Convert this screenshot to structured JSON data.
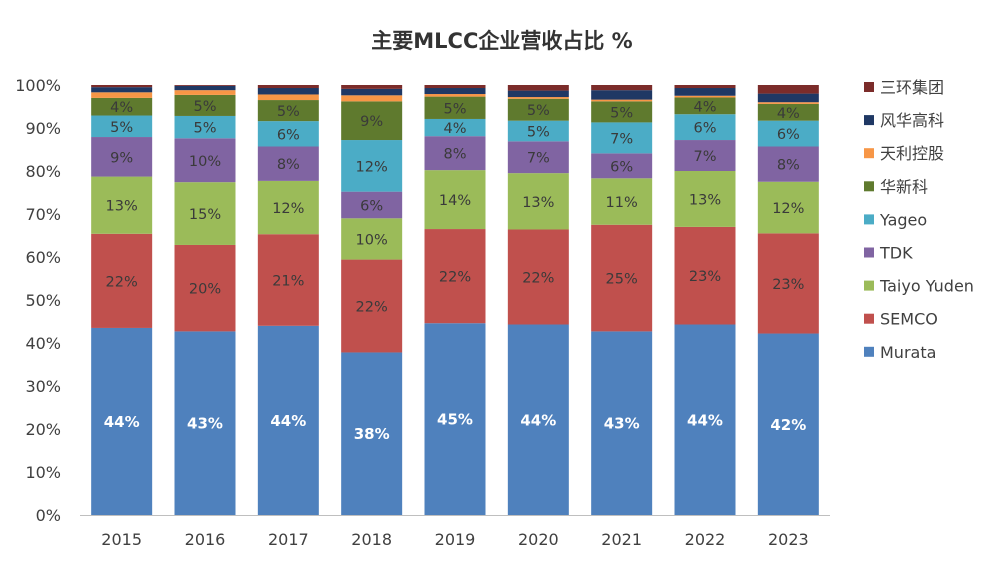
{
  "chart_data": {
    "type": "bar",
    "stacked": true,
    "percent": true,
    "title": "主要MLCC企业营收占比 %",
    "xlabel": "",
    "ylabel": "",
    "ylim": [
      0,
      100
    ],
    "yticks": [
      "0%",
      "10%",
      "20%",
      "30%",
      "40%",
      "50%",
      "60%",
      "70%",
      "80%",
      "90%",
      "100%"
    ],
    "grid": false,
    "legend_position": "right",
    "categories": [
      "2015",
      "2016",
      "2017",
      "2018",
      "2019",
      "2020",
      "2021",
      "2022",
      "2023"
    ],
    "series": [
      {
        "name": "Murata",
        "color": "#4f81bd",
        "values": [
          43.5,
          42.7,
          44.0,
          37.8,
          44.6,
          44.3,
          42.7,
          44.3,
          42.2
        ],
        "labels": [
          "44%",
          "43%",
          "44%",
          "38%",
          "45%",
          "44%",
          "43%",
          "44%",
          "42%"
        ]
      },
      {
        "name": "SEMCO",
        "color": "#c0504d",
        "values": [
          21.9,
          20.1,
          21.3,
          21.6,
          21.9,
          22.1,
          24.8,
          22.7,
          23.3
        ],
        "labels": [
          "22%",
          "20%",
          "21%",
          "22%",
          "22%",
          "22%",
          "25%",
          "23%",
          "23%"
        ]
      },
      {
        "name": "Taiyo Yuden",
        "color": "#9bbb59",
        "values": [
          13.3,
          14.6,
          12.4,
          9.6,
          13.7,
          13.1,
          10.8,
          13.0,
          12.0
        ],
        "labels": [
          "13%",
          "15%",
          "12%",
          "10%",
          "14%",
          "13%",
          "11%",
          "13%",
          "12%"
        ]
      },
      {
        "name": "TDK",
        "color": "#8064a2",
        "values": [
          9.2,
          10.2,
          8.0,
          6.2,
          7.9,
          7.4,
          5.8,
          7.2,
          8.2
        ],
        "labels": [
          "9%",
          "10%",
          "8%",
          "6%",
          "8%",
          "7%",
          "6%",
          "7%",
          "8%"
        ]
      },
      {
        "name": "Yageo",
        "color": "#4bacc6",
        "values": [
          5.0,
          5.2,
          5.9,
          12.0,
          4.0,
          4.8,
          7.2,
          6.0,
          6.0
        ],
        "labels": [
          "5%",
          "5%",
          "6%",
          "12%",
          "4%",
          "5%",
          "7%",
          "6%",
          "6%"
        ]
      },
      {
        "name": "华新科",
        "color": "#5f7a2e",
        "values": [
          4.1,
          4.9,
          4.9,
          9.0,
          5.2,
          5.1,
          4.9,
          3.9,
          3.9
        ],
        "labels": [
          "4%",
          "5%",
          "5%",
          "9%",
          "5%",
          "5%",
          "5%",
          "4%",
          "4%"
        ]
      },
      {
        "name": "天利控股",
        "color": "#f79646",
        "values": [
          1.3,
          1.1,
          1.3,
          1.4,
          0.6,
          0.4,
          0.4,
          0.4,
          0.4
        ],
        "labels": [
          "",
          "",
          "",
          "",
          "",
          "",
          "",
          "",
          ""
        ]
      },
      {
        "name": "风华高科",
        "color": "#1f3864",
        "values": [
          1.2,
          1.0,
          1.5,
          1.5,
          1.4,
          1.5,
          2.2,
          1.8,
          2.0
        ],
        "labels": [
          "",
          "",
          "",
          "",
          "",
          "",
          "",
          "",
          ""
        ]
      },
      {
        "name": "三环集团",
        "color": "#7b2c2a",
        "values": [
          0.5,
          0.2,
          0.7,
          0.9,
          0.7,
          1.3,
          1.2,
          0.7,
          2.0
        ],
        "labels": [
          "",
          "",
          "",
          "",
          "",
          "",
          "",
          "",
          ""
        ]
      }
    ]
  }
}
